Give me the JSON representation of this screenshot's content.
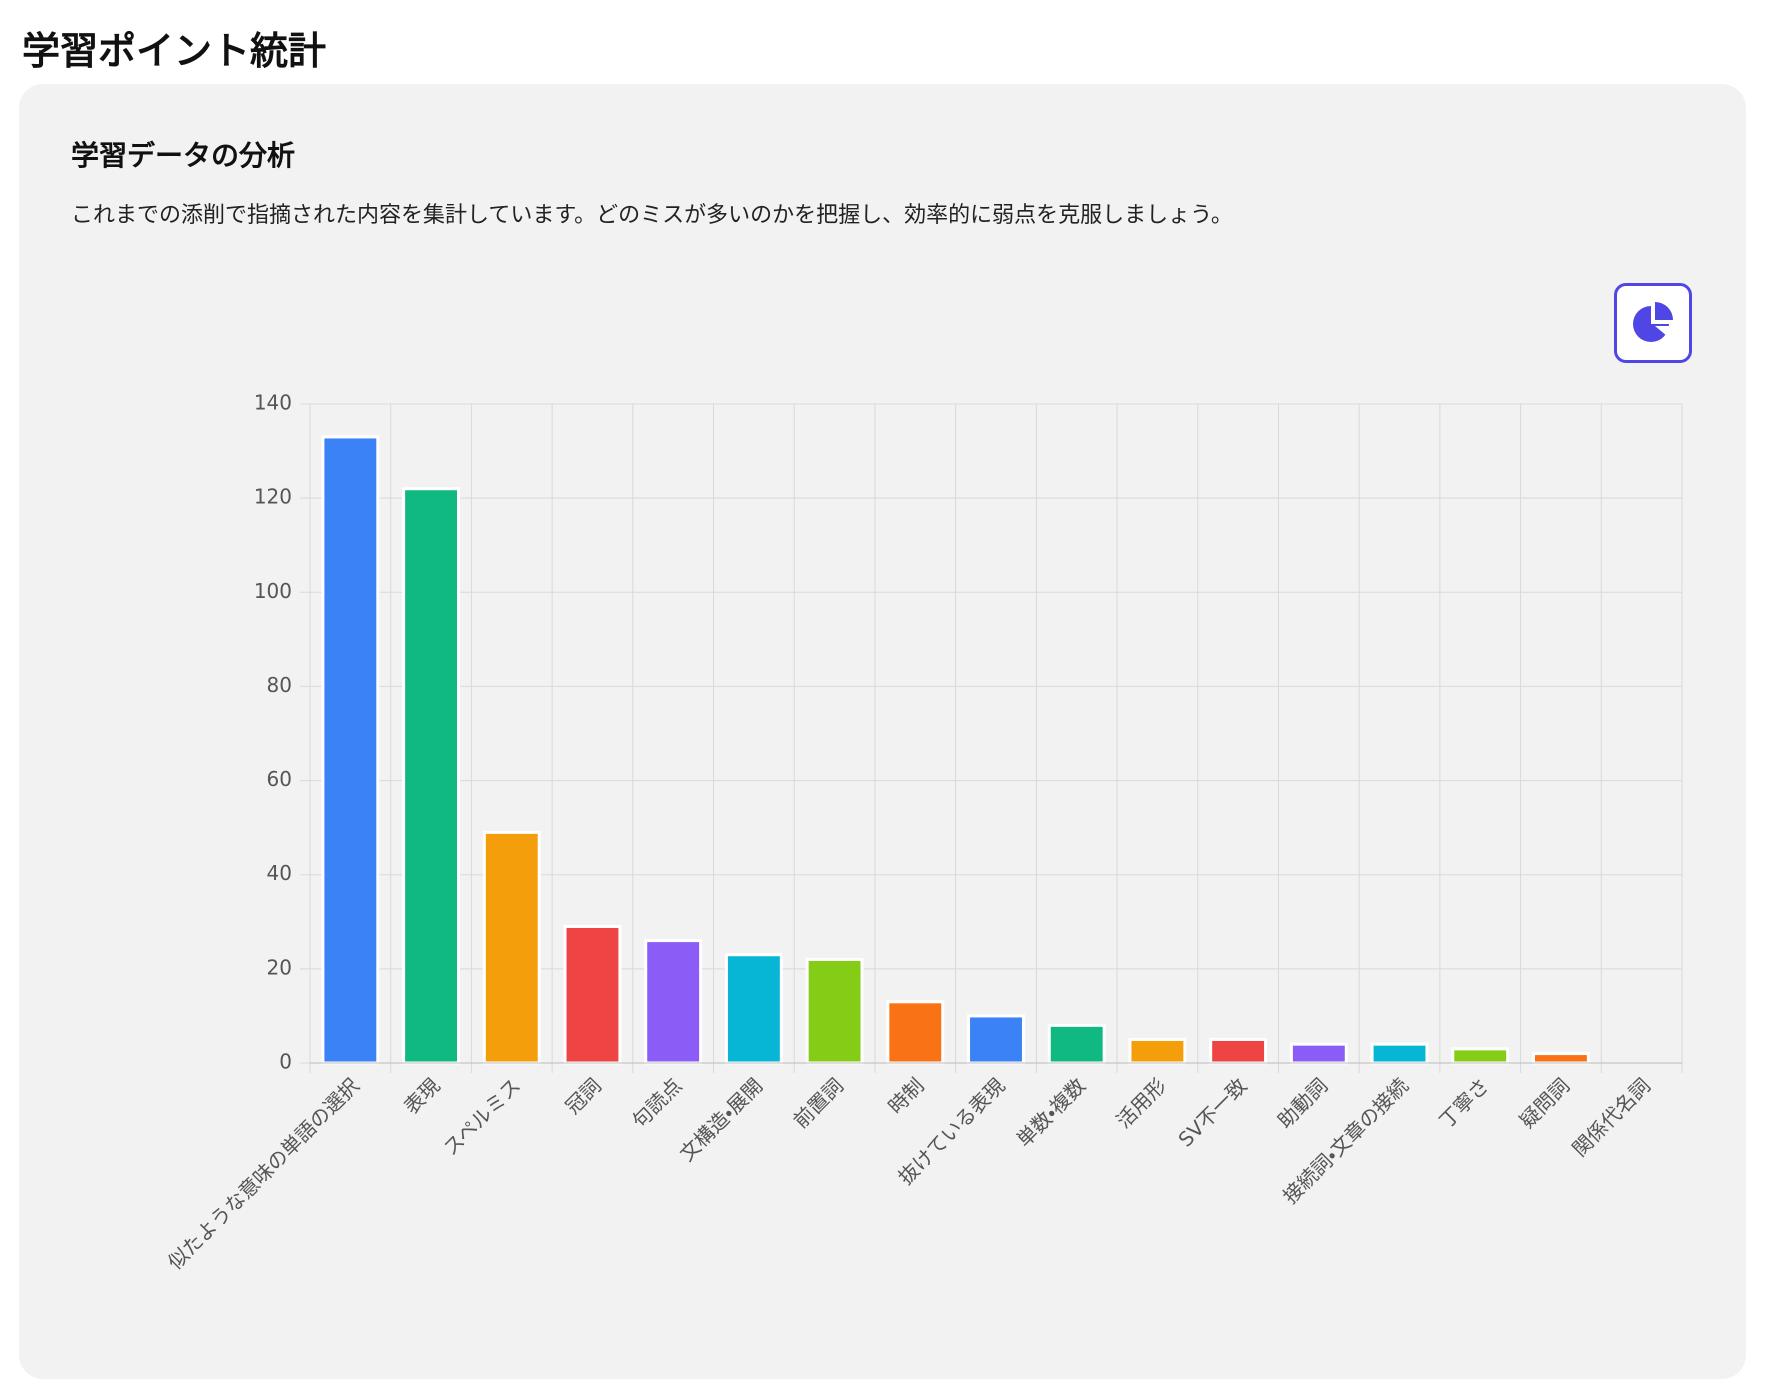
{
  "header": {
    "title": "学習ポイント統計"
  },
  "card": {
    "heading": "学習データの分析",
    "description": "これまでの添削で指摘された内容を集計しています。どのミスが多いのかを把握し、効率的に弱点を克服しましょう。"
  },
  "chart_data": {
    "type": "bar",
    "categories": [
      "似たような意味の単語の選択",
      "表現",
      "スペルミス",
      "冠詞",
      "句読点",
      "文構造・展開",
      "前置詞",
      "時制",
      "抜けている表現",
      "単数・複数",
      "活用形",
      "SV不一致",
      "助動詞",
      "接続詞・文章の接続",
      "丁寧さ",
      "疑問詞",
      "関係代名詞"
    ],
    "values": [
      133,
      122,
      49,
      29,
      26,
      23,
      22,
      13,
      10,
      8,
      5,
      5,
      4,
      4,
      3,
      2,
      0
    ],
    "colors": [
      "#3b82f6",
      "#10b981",
      "#f59e0b",
      "#ef4444",
      "#8b5cf6",
      "#06b6d4",
      "#84cc16",
      "#f97316",
      "#3b82f6",
      "#10b981",
      "#f59e0b",
      "#ef4444",
      "#8b5cf6",
      "#06b6d4",
      "#84cc16",
      "#f97316",
      "#3b82f6"
    ],
    "ylim": [
      0,
      140
    ],
    "yticks": [
      0,
      20,
      40,
      60,
      80,
      100,
      120,
      140
    ],
    "grid": true
  }
}
